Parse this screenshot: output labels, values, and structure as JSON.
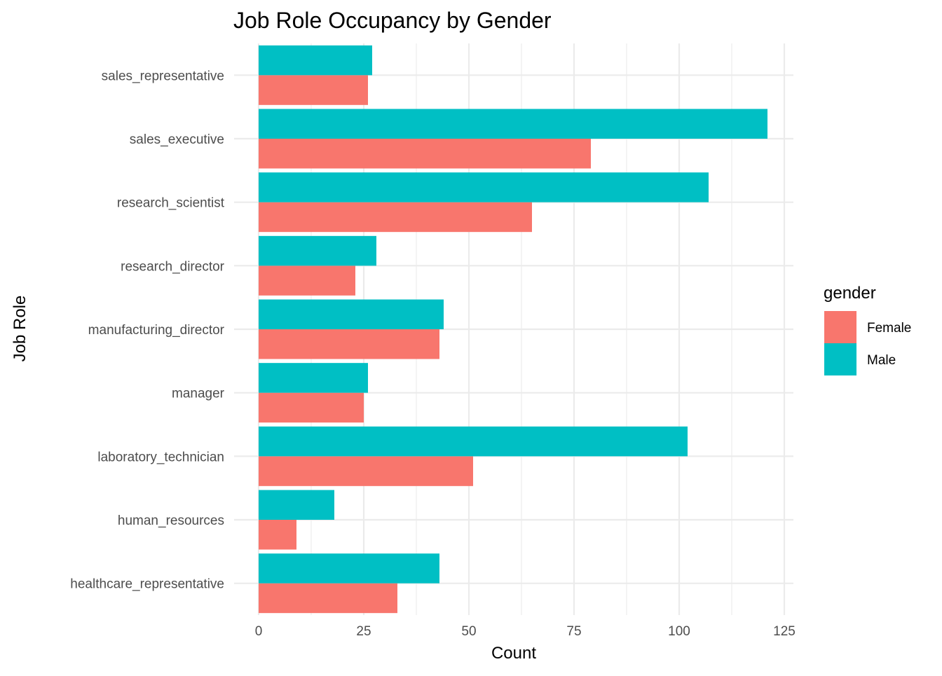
{
  "chart_data": {
    "type": "bar",
    "orientation": "horizontal",
    "title": "Job Role Occupancy by Gender",
    "xlabel": "Count",
    "ylabel": "Job Role",
    "xlim": [
      0,
      127
    ],
    "x_ticks": [
      0,
      25,
      50,
      75,
      100,
      125
    ],
    "grid": true,
    "legend": {
      "title": "gender",
      "position": "right"
    },
    "categories": [
      "healthcare_representative",
      "human_resources",
      "laboratory_technician",
      "manager",
      "manufacturing_director",
      "research_director",
      "research_scientist",
      "sales_executive",
      "sales_representative"
    ],
    "series": [
      {
        "name": "Female",
        "color": "#F8766D",
        "values": [
          33,
          9,
          51,
          25,
          43,
          23,
          65,
          79,
          26
        ]
      },
      {
        "name": "Male",
        "color": "#00BFC4",
        "values": [
          43,
          18,
          102,
          26,
          44,
          28,
          107,
          121,
          27
        ]
      }
    ]
  }
}
